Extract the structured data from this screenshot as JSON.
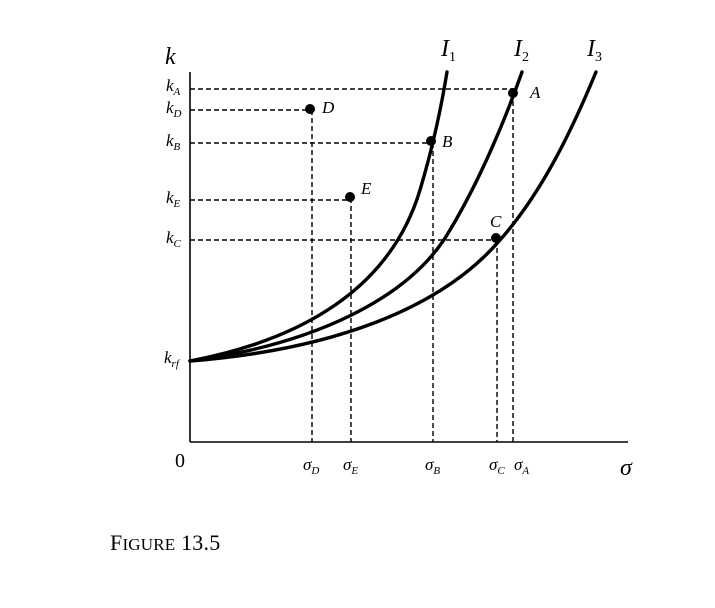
{
  "axes": {
    "y_label": "k",
    "x_label": "σ",
    "origin": "0"
  },
  "y_ticks": [
    {
      "main": "k",
      "sub": "A"
    },
    {
      "main": "k",
      "sub": "D"
    },
    {
      "main": "k",
      "sub": "B"
    },
    {
      "main": "k",
      "sub": "E"
    },
    {
      "main": "k",
      "sub": "C"
    },
    {
      "main": "k",
      "sub": "rf"
    }
  ],
  "x_ticks": [
    {
      "main": "σ",
      "sub": "D"
    },
    {
      "main": "σ",
      "sub": "E"
    },
    {
      "main": "σ",
      "sub": "B"
    },
    {
      "main": "σ",
      "sub": "C"
    },
    {
      "main": "σ",
      "sub": "A"
    }
  ],
  "curves": [
    {
      "main": "I",
      "sub": "1"
    },
    {
      "main": "I",
      "sub": "2"
    },
    {
      "main": "I",
      "sub": "3"
    }
  ],
  "points": [
    "A",
    "B",
    "C",
    "D",
    "E"
  ],
  "caption": {
    "first_letter": "F",
    "rest": "IGURE",
    "number": "13.5"
  }
}
